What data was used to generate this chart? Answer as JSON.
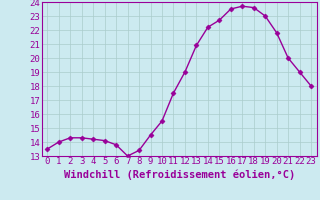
{
  "x": [
    0,
    1,
    2,
    3,
    4,
    5,
    6,
    7,
    8,
    9,
    10,
    11,
    12,
    13,
    14,
    15,
    16,
    17,
    18,
    19,
    20,
    21,
    22,
    23
  ],
  "y": [
    13.5,
    14.0,
    14.3,
    14.3,
    14.2,
    14.1,
    13.8,
    13.0,
    13.4,
    14.5,
    15.5,
    17.5,
    19.0,
    20.9,
    22.2,
    22.7,
    23.5,
    23.7,
    23.6,
    23.0,
    21.8,
    20.0,
    19.0,
    18.0
  ],
  "line_color": "#990099",
  "marker": "D",
  "marker_size": 2.5,
  "bg_color": "#cceaf0",
  "grid_color": "#aacccc",
  "xlabel": "Windchill (Refroidissement éolien,°C)",
  "xlim": [
    -0.5,
    23.5
  ],
  "ylim": [
    13,
    24
  ],
  "xticks": [
    0,
    1,
    2,
    3,
    4,
    5,
    6,
    7,
    8,
    9,
    10,
    11,
    12,
    13,
    14,
    15,
    16,
    17,
    18,
    19,
    20,
    21,
    22,
    23
  ],
  "yticks": [
    13,
    14,
    15,
    16,
    17,
    18,
    19,
    20,
    21,
    22,
    23,
    24
  ],
  "xlabel_fontsize": 7.5,
  "tick_fontsize": 6.5,
  "line_width": 1.0
}
